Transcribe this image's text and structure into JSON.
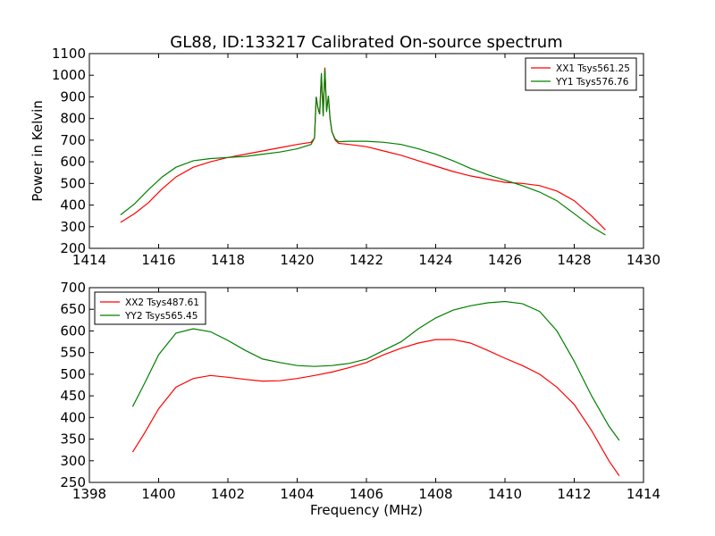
{
  "title": "GL88, ID:133217 Calibrated On-source spectrum",
  "chart_data": [
    {
      "type": "line",
      "ylabel": "Power in Kelvin",
      "xlabel": "",
      "xlim": [
        1414,
        1430
      ],
      "ylim": [
        200,
        1100
      ],
      "xticks": [
        "1414",
        "1416",
        "1418",
        "1420",
        "1422",
        "1424",
        "1426",
        "1428",
        "1430"
      ],
      "yticks": [
        "200",
        "300",
        "400",
        "500",
        "600",
        "700",
        "800",
        "900",
        "1000",
        "1100"
      ],
      "grid": false,
      "legend_position": "top-right",
      "series": [
        {
          "name": "XX1 Tsys561.25",
          "color": "#ff0000",
          "points": [
            [
              1414.9,
              320
            ],
            [
              1415.3,
              360
            ],
            [
              1415.7,
              410
            ],
            [
              1416.1,
              475
            ],
            [
              1416.5,
              530
            ],
            [
              1417,
              575
            ],
            [
              1417.5,
              600
            ],
            [
              1418,
              620
            ],
            [
              1418.5,
              635
            ],
            [
              1419,
              650
            ],
            [
              1419.5,
              665
            ],
            [
              1420,
              680
            ],
            [
              1420.4,
              690
            ],
            [
              1420.5,
              710
            ],
            [
              1420.55,
              900
            ],
            [
              1420.6,
              850
            ],
            [
              1420.65,
              820
            ],
            [
              1420.7,
              1000
            ],
            [
              1420.75,
              820
            ],
            [
              1420.8,
              1035
            ],
            [
              1420.85,
              840
            ],
            [
              1420.9,
              900
            ],
            [
              1420.95,
              800
            ],
            [
              1421,
              740
            ],
            [
              1421.1,
              700
            ],
            [
              1421.2,
              685
            ],
            [
              1421.5,
              680
            ],
            [
              1422,
              670
            ],
            [
              1422.5,
              650
            ],
            [
              1423,
              630
            ],
            [
              1423.5,
              605
            ],
            [
              1424,
              580
            ],
            [
              1424.5,
              555
            ],
            [
              1425,
              535
            ],
            [
              1425.5,
              520
            ],
            [
              1426,
              505
            ],
            [
              1426.5,
              500
            ],
            [
              1427,
              490
            ],
            [
              1427.5,
              465
            ],
            [
              1428,
              420
            ],
            [
              1428.5,
              350
            ],
            [
              1428.9,
              285
            ]
          ]
        },
        {
          "name": "YY1 Tsys576.76",
          "color": "#008000",
          "points": [
            [
              1414.9,
              355
            ],
            [
              1415.3,
              405
            ],
            [
              1415.7,
              470
            ],
            [
              1416.1,
              530
            ],
            [
              1416.5,
              575
            ],
            [
              1417,
              605
            ],
            [
              1417.5,
              615
            ],
            [
              1418,
              620
            ],
            [
              1418.5,
              625
            ],
            [
              1419,
              635
            ],
            [
              1419.5,
              645
            ],
            [
              1420,
              660
            ],
            [
              1420.4,
              680
            ],
            [
              1420.5,
              710
            ],
            [
              1420.55,
              900
            ],
            [
              1420.6,
              850
            ],
            [
              1420.65,
              820
            ],
            [
              1420.7,
              1010
            ],
            [
              1420.75,
              810
            ],
            [
              1420.8,
              1030
            ],
            [
              1420.85,
              830
            ],
            [
              1420.9,
              905
            ],
            [
              1420.95,
              800
            ],
            [
              1421,
              740
            ],
            [
              1421.1,
              705
            ],
            [
              1421.2,
              693
            ],
            [
              1421.5,
              695
            ],
            [
              1422,
              695
            ],
            [
              1422.5,
              690
            ],
            [
              1423,
              680
            ],
            [
              1423.5,
              660
            ],
            [
              1424,
              635
            ],
            [
              1424.5,
              605
            ],
            [
              1425,
              570
            ],
            [
              1425.5,
              540
            ],
            [
              1426,
              515
            ],
            [
              1426.5,
              490
            ],
            [
              1427,
              460
            ],
            [
              1427.5,
              420
            ],
            [
              1428,
              360
            ],
            [
              1428.5,
              300
            ],
            [
              1428.9,
              262
            ]
          ]
        }
      ]
    },
    {
      "type": "line",
      "ylabel": "",
      "xlabel": "Frequency (MHz)",
      "xlim": [
        1398,
        1414
      ],
      "ylim": [
        250,
        700
      ],
      "xticks": [
        "1398",
        "1400",
        "1402",
        "1404",
        "1406",
        "1408",
        "1410",
        "1412",
        "1414"
      ],
      "yticks": [
        "250",
        "300",
        "350",
        "400",
        "450",
        "500",
        "550",
        "600",
        "650",
        "700"
      ],
      "grid": false,
      "legend_position": "top-left",
      "series": [
        {
          "name": "XX2 Tsys487.61",
          "color": "#ff0000",
          "points": [
            [
              1399.25,
              320
            ],
            [
              1399.6,
              365
            ],
            [
              1400,
              420
            ],
            [
              1400.5,
              470
            ],
            [
              1401,
              490
            ],
            [
              1401.5,
              497
            ],
            [
              1402,
              493
            ],
            [
              1402.5,
              488
            ],
            [
              1403,
              484
            ],
            [
              1403.5,
              485
            ],
            [
              1404,
              490
            ],
            [
              1404.5,
              497
            ],
            [
              1405,
              505
            ],
            [
              1405.5,
              515
            ],
            [
              1406,
              527
            ],
            [
              1406.5,
              545
            ],
            [
              1407,
              560
            ],
            [
              1407.5,
              572
            ],
            [
              1408,
              580
            ],
            [
              1408.5,
              580
            ],
            [
              1409,
              572
            ],
            [
              1409.5,
              555
            ],
            [
              1410,
              537
            ],
            [
              1410.5,
              520
            ],
            [
              1411,
              500
            ],
            [
              1411.5,
              470
            ],
            [
              1412,
              430
            ],
            [
              1412.5,
              370
            ],
            [
              1413,
              300
            ],
            [
              1413.3,
              265
            ]
          ]
        },
        {
          "name": "YY2 Tsys565.45",
          "color": "#008000",
          "points": [
            [
              1399.25,
              425
            ],
            [
              1399.6,
              480
            ],
            [
              1400,
              545
            ],
            [
              1400.5,
              595
            ],
            [
              1401,
              605
            ],
            [
              1401.5,
              598
            ],
            [
              1402,
              578
            ],
            [
              1402.5,
              555
            ],
            [
              1403,
              535
            ],
            [
              1403.5,
              527
            ],
            [
              1404,
              520
            ],
            [
              1404.5,
              518
            ],
            [
              1405,
              520
            ],
            [
              1405.5,
              525
            ],
            [
              1406,
              535
            ],
            [
              1406.5,
              555
            ],
            [
              1407,
              575
            ],
            [
              1407.5,
              605
            ],
            [
              1408,
              630
            ],
            [
              1408.5,
              648
            ],
            [
              1409,
              658
            ],
            [
              1409.5,
              665
            ],
            [
              1410,
              668
            ],
            [
              1410.5,
              663
            ],
            [
              1411,
              645
            ],
            [
              1411.5,
              600
            ],
            [
              1412,
              530
            ],
            [
              1412.5,
              450
            ],
            [
              1413,
              380
            ],
            [
              1413.3,
              347
            ]
          ]
        }
      ]
    }
  ]
}
